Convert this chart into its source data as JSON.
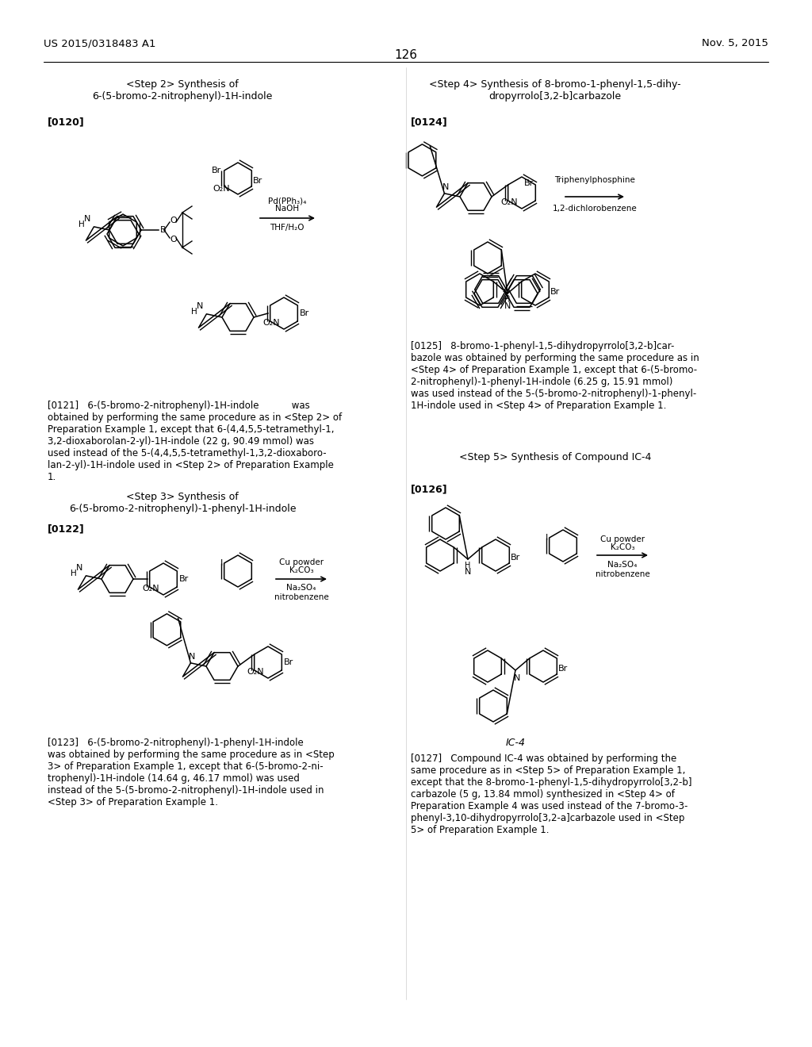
{
  "page_number": "126",
  "patent_left": "US 2015/0318483 A1",
  "patent_right": "Nov. 5, 2015",
  "background_color": "#ffffff",
  "text_color": "#000000",
  "title_step2": "<Step 2> Synthesis of\n6-(5-bromo-2-nitrophenyl)-1H-indole",
  "title_step3": "<Step 3> Synthesis of\n6-(5-bromo-2-nitrophenyl)-1-phenyl-1H-indole",
  "title_step4": "<Step 4> Synthesis of 8-bromo-1-phenyl-1,5-dihy-\ndropyrrolo[3,2-b]carbazole",
  "title_step5": "<Step 5> Synthesis of Compound IC-4",
  "label_0120": "[0120]",
  "label_0121_text": "[0121]   6-(5-bromo-2-nitrophenyl)-1H-indole           was\nobtained by performing the same procedure as in <Step 2> of\nPreparation Example 1, except that 6-(4,4,5,5-tetramethyl-1,\n3,2-dioxaborolan-2-yl)-1H-indole (22 g, 90.49 mmol) was\nused instead of the 5-(4,4,5,5-tetramethyl-1,3,2-dioxaboro-\nlan-2-yl)-1H-indole used in <Step 2> of Preparation Example\n1.",
  "label_0122": "[0122]",
  "label_0123_text": "[0123]   6-(5-bromo-2-nitrophenyl)-1-phenyl-1H-indole\nwas obtained by performing the same procedure as in <Step\n3> of Preparation Example 1, except that 6-(5-bromo-2-ni-\ntrophenyl)-1H-indole (14.64 g, 46.17 mmol) was used\ninstead of the 5-(5-bromo-2-nitrophenyl)-1H-indole used in\n<Step 3> of Preparation Example 1.",
  "label_0124": "[0124]",
  "label_0125_text": "[0125]   8-bromo-1-phenyl-1,5-dihydropyrrolo[3,2-b]car-\nbazole was obtained by performing the same procedure as in\n<Step 4> of Preparation Example 1, except that 6-(5-bromo-\n2-nitrophenyl)-1-phenyl-1H-indole (6.25 g, 15.91 mmol)\nwas used instead of the 5-(5-bromo-2-nitrophenyl)-1-phenyl-\n1H-indole used in <Step 4> of Preparation Example 1.",
  "label_0126": "[0126]",
  "label_0127_text": "[0127]   Compound IC-4 was obtained by performing the\nsame procedure as in <Step 5> of Preparation Example 1,\nexcept that the 8-bromo-1-phenyl-1,5-dihydropyrrolo[3,2-b]\ncarbazole (5 g, 13.84 mmol) synthesized in <Step 4> of\nPreparation Example 4 was used instead of the 7-bromo-3-\nphenyl-3,10-dihydropyrrolo[3,2-a]carbazole used in <Step\n5> of Preparation Example 1.",
  "compound_label": "IC-4"
}
